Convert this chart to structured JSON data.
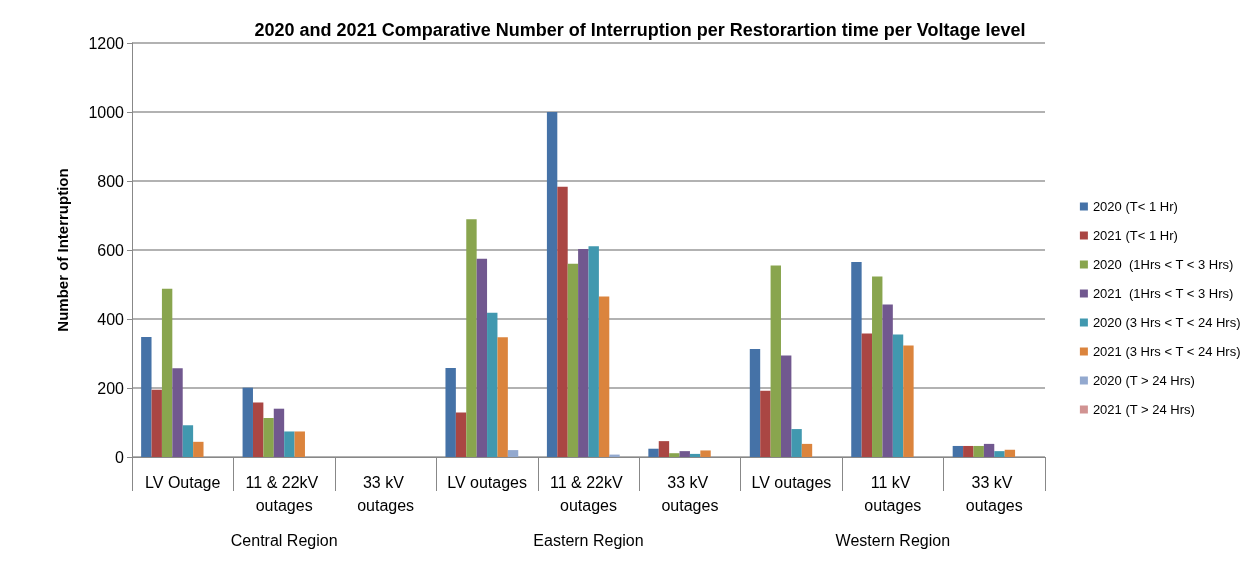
{
  "chart_data": {
    "type": "bar",
    "title": "2020 and 2021 Comparative Number of Interruption per Restorartion time per Voltage level",
    "ylabel": "Number of Interruption",
    "categories": [
      "LV Outage",
      "11 & 22kV outages",
      "33 kV outages",
      "LV outages",
      "11 & 22kV outages",
      "33 kV outages",
      "LV outages",
      "11 kV outages",
      "33 kV outages"
    ],
    "annotations": [
      "Central Region",
      "Eastern Region",
      "Western Region"
    ],
    "series": [
      {
        "name": "2020 (T< 1 Hr)",
        "color": "#4572a7",
        "values": [
          348,
          201,
          0,
          258,
          1000,
          24,
          313,
          565,
          32
        ]
      },
      {
        "name": "2021 (T< 1 Hr)",
        "color": "#aa4643",
        "values": [
          195,
          158,
          0,
          129,
          783,
          46,
          192,
          358,
          32
        ]
      },
      {
        "name": "2020  (1Hrs < T < 3 Hrs)",
        "color": "#89a54e",
        "values": [
          488,
          113,
          0,
          689,
          560,
          11,
          555,
          523,
          32
        ]
      },
      {
        "name": "2021  (1Hrs < T < 3 Hrs)",
        "color": "#71588f",
        "values": [
          257,
          140,
          0,
          575,
          603,
          17,
          294,
          442,
          38
        ]
      },
      {
        "name": "2020 (3 Hrs < T < 24 Hrs)",
        "color": "#4198af",
        "values": [
          92,
          74,
          0,
          418,
          611,
          9,
          81,
          355,
          17
        ]
      },
      {
        "name": "2021 (3 Hrs < T < 24 Hrs)",
        "color": "#db843d",
        "values": [
          44,
          74,
          0,
          347,
          465,
          19,
          38,
          323,
          21
        ]
      },
      {
        "name": "2020 (T > 24 Hrs)",
        "color": "#93a9cf",
        "values": [
          0,
          0,
          0,
          20,
          7,
          0,
          0,
          0,
          0
        ]
      },
      {
        "name": "2021 (T > 24 Hrs)",
        "color": "#d19392",
        "values": [
          0,
          0,
          0,
          0,
          0,
          0,
          0,
          0,
          0
        ]
      }
    ],
    "ylim": [
      0,
      1200
    ],
    "yticks": [
      0,
      200,
      400,
      600,
      800,
      1000,
      1200
    ],
    "grid": "y",
    "legend": "right"
  }
}
